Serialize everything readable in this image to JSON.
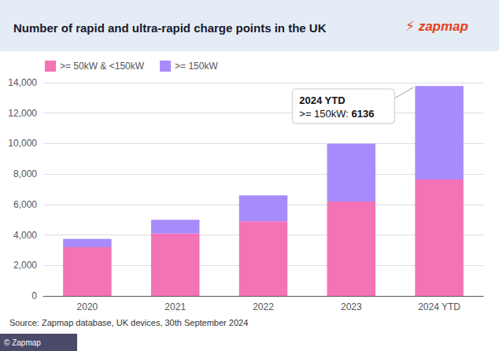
{
  "chart_data": {
    "type": "bar",
    "title": "Number of rapid and ultra-rapid charge points in the UK",
    "categories": [
      "2020",
      "2021",
      "2022",
      "2023",
      "2024 YTD"
    ],
    "series": [
      {
        "name": ">= 50kW & <150kW",
        "color": "#F472B6",
        "values": [
          3200,
          4100,
          4900,
          6200,
          7650
        ]
      },
      {
        "name": ">= 150kW",
        "color": "#A78BFA",
        "values": [
          550,
          900,
          1700,
          3800,
          6136
        ]
      }
    ],
    "stacked": true,
    "ylim": [
      0,
      14000
    ],
    "yticks": [
      0,
      {
        "value": 2000,
        "label": "2,000"
      },
      {
        "value": 4000,
        "label": "4,000"
      },
      {
        "value": 6000,
        "label": "6,000"
      },
      {
        "value": 8000,
        "label": "8,000"
      },
      {
        "value": 10000,
        "label": "10,000"
      },
      {
        "value": 12000,
        "label": "12,000"
      },
      {
        "value": 14000,
        "label": "14,000"
      }
    ],
    "grid": true,
    "legend": "upper left",
    "annotation": {
      "title": "2024 YTD",
      "label": ">= 150kW: ",
      "value": 6136
    },
    "source": "Source: Zapmap database, UK devices, 30th September 2024",
    "logo": "⚡ zapmap",
    "credit": "© Zapmap"
  }
}
